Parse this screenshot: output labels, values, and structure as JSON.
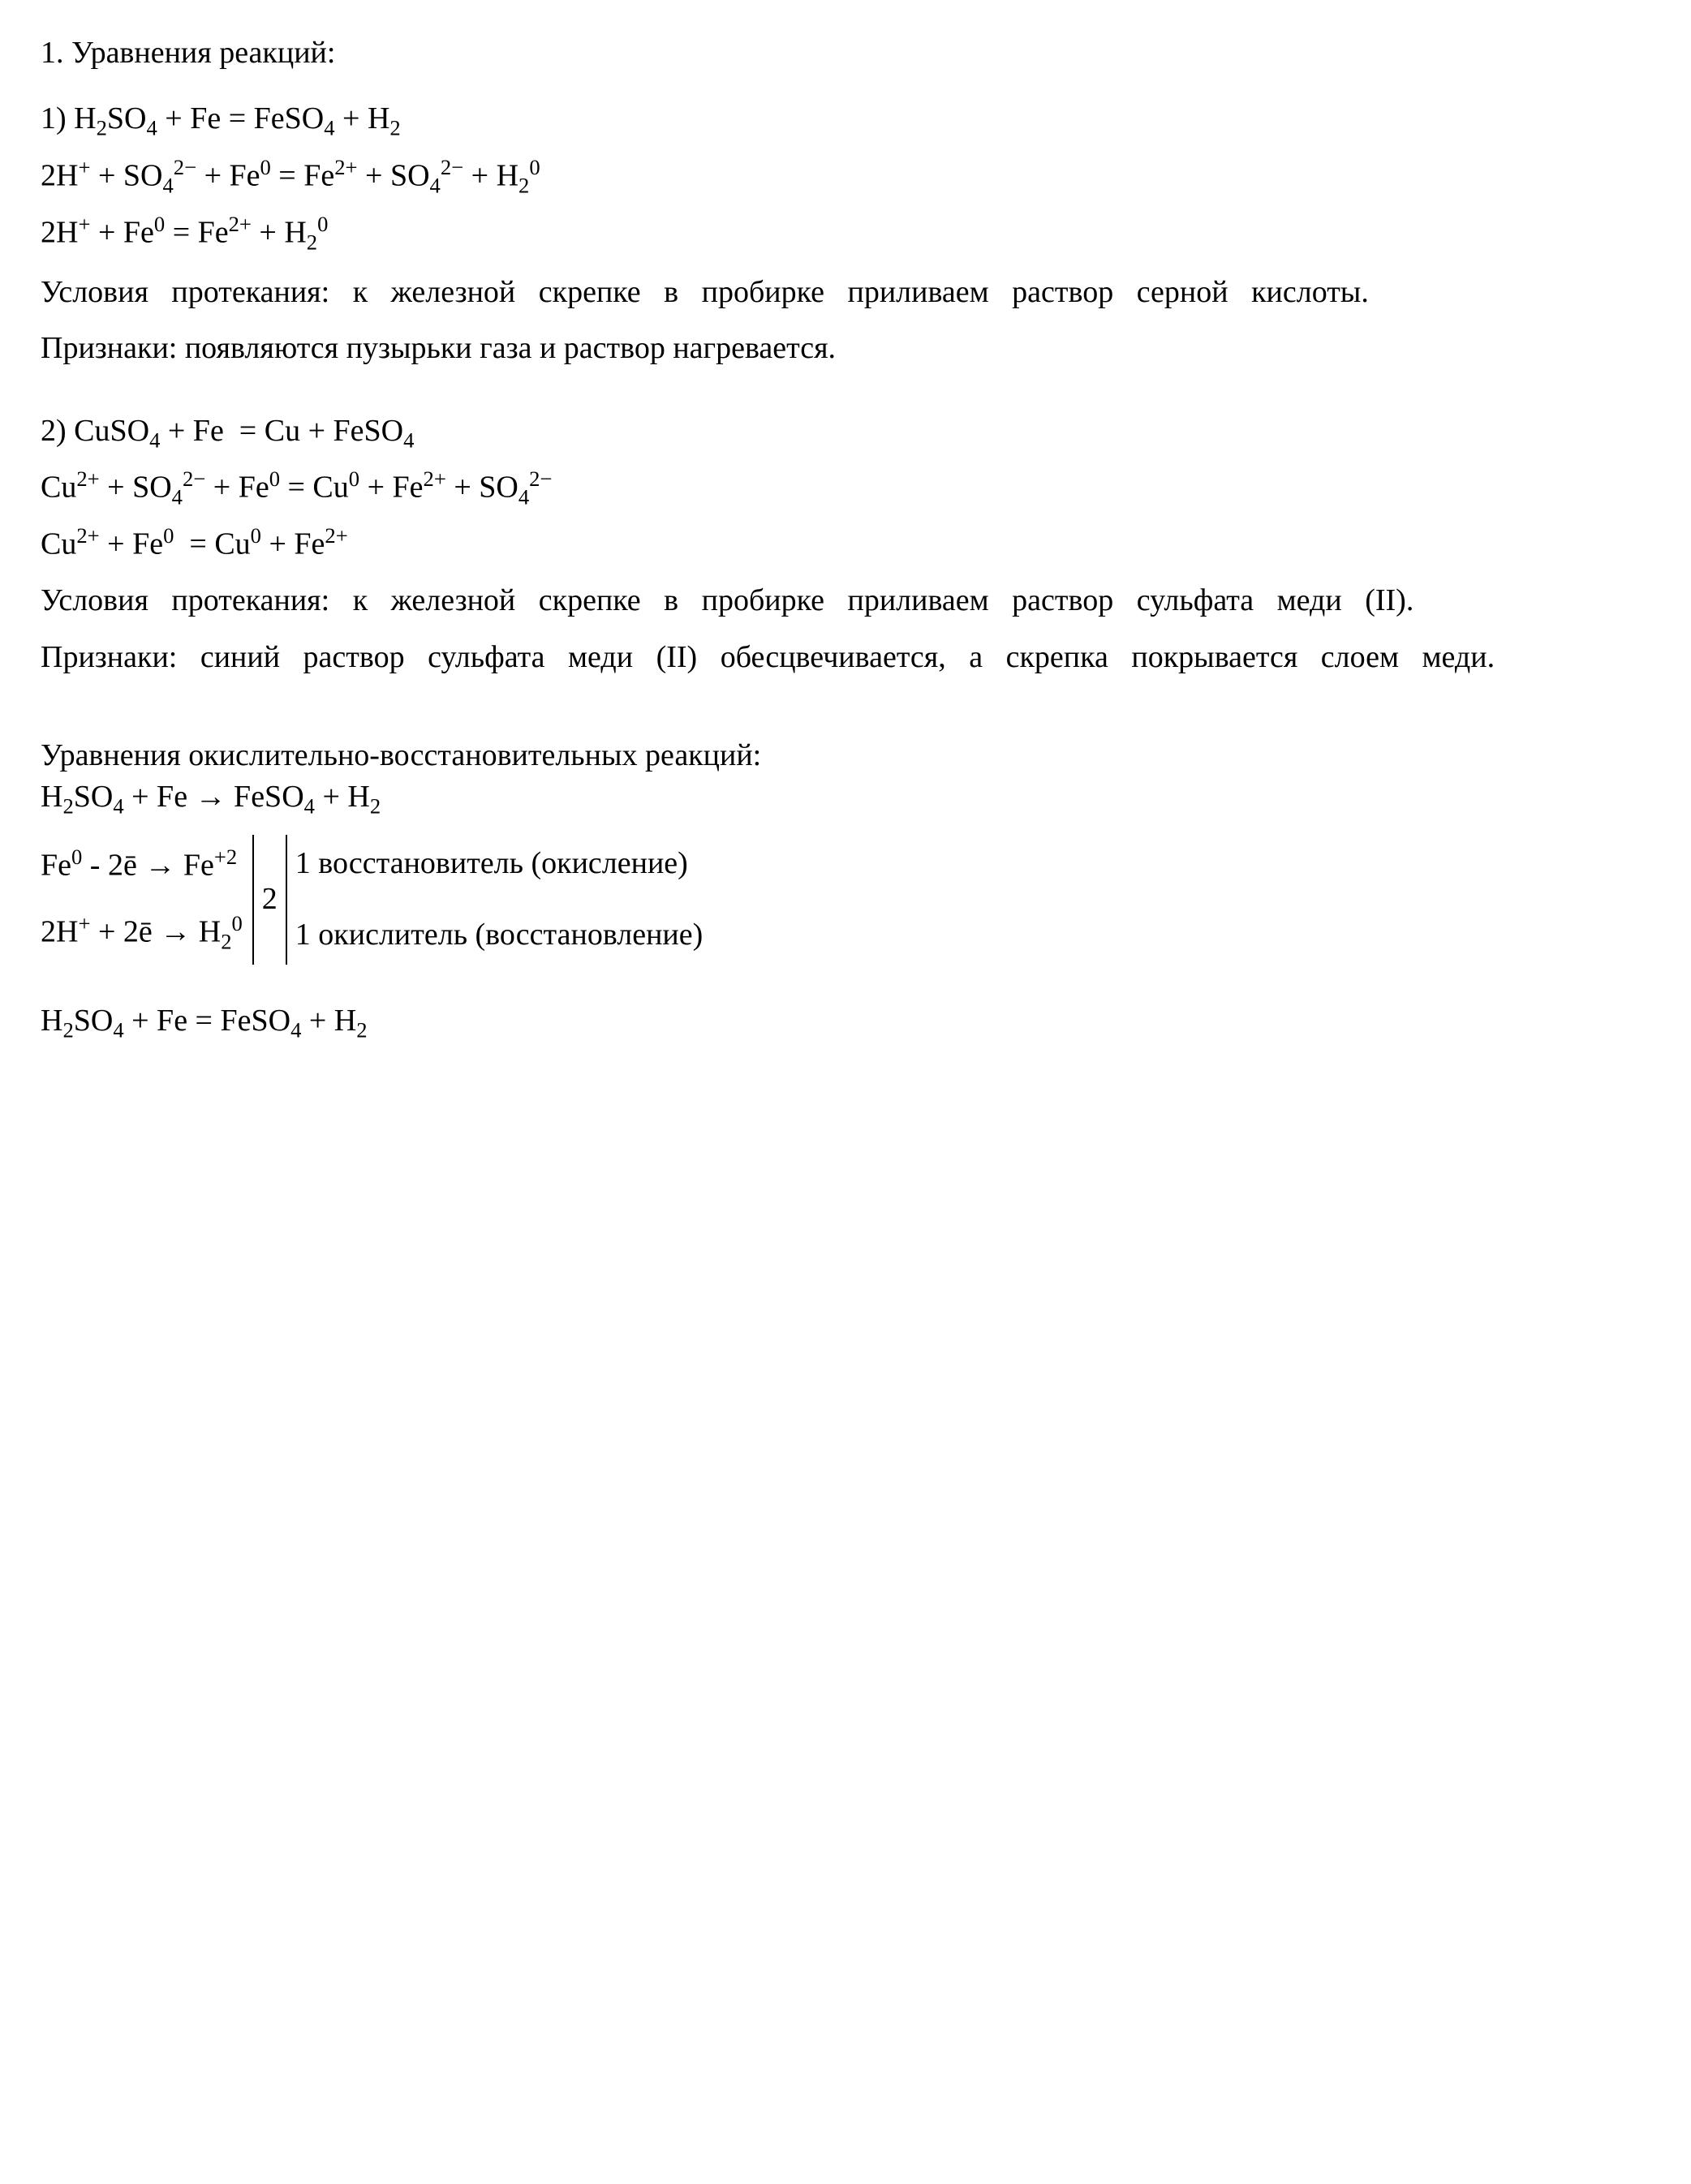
{
  "doc": {
    "font_family": "Times New Roman",
    "background_color": "#ffffff",
    "text_color": "#000000",
    "heading": "1. Уравнения реакций:",
    "section1": {
      "eq1": "1) H₂SO₄ + Fe = FeSO₄ + H₂",
      "eq2": "2H⁺ + SO₄²⁻ + Fe⁰ = Fe²⁺ + SO₄²⁻ + H₂⁰",
      "eq3": "2H⁺ + Fe⁰ = Fe²⁺ + H₂⁰",
      "conditions": "Условия протекания: к железной скрепке в пробирке приливаем раствор серной кислоты.",
      "signs": "Признаки: появляются пузырьки газа и раствор нагревается."
    },
    "section2": {
      "eq1": "2) CuSO₄ + Fe  = Cu + FeSO₄",
      "eq2": "Cu²⁺ + SO₄²⁻ + Fe⁰ = Cu⁰ + Fe²⁺ + SO₄²⁻",
      "eq3": "Cu²⁺ + Fe⁰  = Cu⁰ + Fe²⁺",
      "conditions": "Условия протекания: к железной скрепке в пробирке приливаем раствор сульфата меди (II).",
      "signs": "Признаки: синий раствор сульфата меди (II) обесцвечивается, а скрепка покрывается слоем меди."
    },
    "redox": {
      "title": "Уравнения окислительно-восстановительных реакций:",
      "eq1": "H₂SO₄ + Fe → FeSO₄ + H₂",
      "half1_left": "Fe⁰ - 2ē → Fe⁺²",
      "half2_left": "2H⁺ + 2ē → H₂⁰",
      "mid": "2",
      "half1_right": "1 восстановитель (окисление)",
      "half2_right": "1 окислитель (восстановление)",
      "final": "H₂SO₄ + Fe = FeSO₄ + H₂"
    }
  }
}
